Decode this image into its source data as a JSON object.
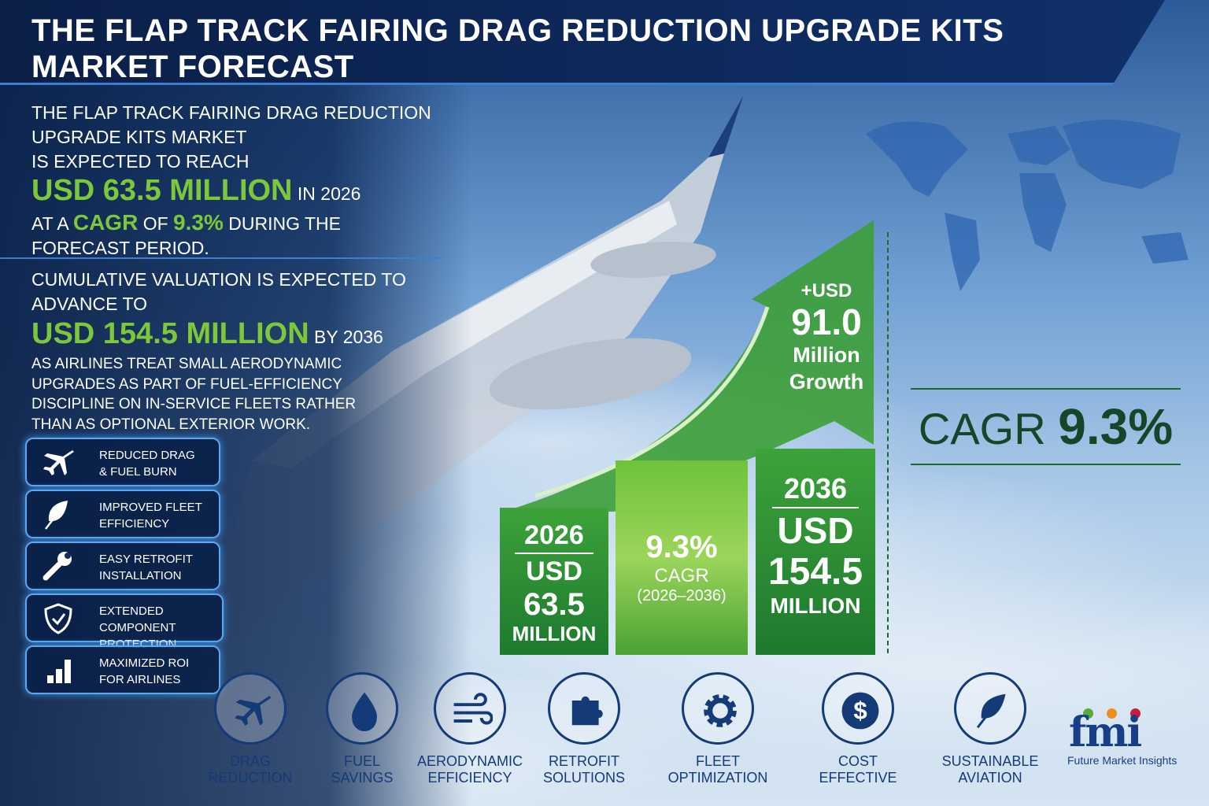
{
  "header": {
    "title_line1": "THE FLAP TRACK FAIRING DRAG REDUCTION UPGRADE KITS",
    "title_line2": "MARKET FORECAST"
  },
  "intro": {
    "line1": "THE FLAP TRACK FAIRING DRAG REDUCTION",
    "line2": "UPGRADE KITS MARKET",
    "line3": "IS EXPECTED TO REACH",
    "value": "USD 63.5 MILLION",
    "value_suffix": "IN 2026",
    "cagr_pre": "AT A",
    "cagr_label": "CAGR",
    "cagr_of": "OF",
    "cagr_value": "9.3%",
    "cagr_post": "DURING THE",
    "line_end": "FORECAST PERIOD."
  },
  "cumulative": {
    "line1": "CUMULATIVE VALUATION IS EXPECTED TO",
    "line2": "ADVANCE TO",
    "value": "USD 154.5 MILLION",
    "value_suffix": "BY 2036",
    "desc": [
      "AS AIRLINES TREAT SMALL AERODYNAMIC",
      "UPGRADES AS PART OF FUEL-EFFICIENCY",
      "DISCIPLINE ON IN-SERVICE FLEETS RATHER",
      "THAN AS OPTIONAL EXTERIOR WORK."
    ]
  },
  "features": [
    {
      "l1": "REDUCED DRAG",
      "l2": "& FUEL BURN",
      "icon": "airplane-icon"
    },
    {
      "l1": "IMPROVED FLEET",
      "l2": "EFFICIENCY",
      "icon": "leaf-icon"
    },
    {
      "l1": "EASY RETROFIT",
      "l2": "INSTALLATION",
      "icon": "wrench-icon"
    },
    {
      "l1": "EXTENDED COMPONENT",
      "l2": "PROTECTION",
      "icon": "shield-check-icon"
    },
    {
      "l1": "MAXIMIZED ROI",
      "l2": "FOR AIRLINES",
      "icon": "bar-chart-icon"
    }
  ],
  "chart": {
    "start": {
      "year": "2026",
      "currency": "USD",
      "value": "63.5",
      "unit": "MILLION"
    },
    "middle": {
      "value": "9.3%",
      "label": "CAGR",
      "period": "(2026–2036)"
    },
    "end": {
      "year": "2036",
      "currency": "USD",
      "value": "154.5",
      "unit": "MILLION"
    },
    "growth": {
      "prefix": "+USD",
      "value": "91.0",
      "l1": "Million",
      "l2": "Growth"
    }
  },
  "cagr_block": {
    "label": "CAGR",
    "value": "9.3%"
  },
  "bottom_icons": [
    {
      "l1": "DRAG",
      "l2": "REDUCTION",
      "icon": "airplane-icon"
    },
    {
      "l1": "FUEL",
      "l2": "SAVINGS",
      "icon": "droplet-icon"
    },
    {
      "l1": "AERODYNAMIC",
      "l2": "EFFICIENCY",
      "icon": "wind-icon"
    },
    {
      "l1": "RETROFIT",
      "l2": "SOLUTIONS",
      "icon": "puzzle-icon"
    },
    {
      "l1": "FLEET",
      "l2": "OPTIMIZATION",
      "icon": "gear-icon"
    },
    {
      "l1": "COST",
      "l2": "EFFECTIVE",
      "icon": "dollar-icon"
    },
    {
      "l1": "SUSTAINABLE",
      "l2": "AVIATION",
      "icon": "leaf-icon"
    }
  ],
  "logo": {
    "mark": "fmi",
    "name": "Future Market Insights"
  },
  "colors": {
    "navy": "#0b1f48",
    "green": "#7cc83a",
    "dark_green": "#1d6b2a"
  }
}
